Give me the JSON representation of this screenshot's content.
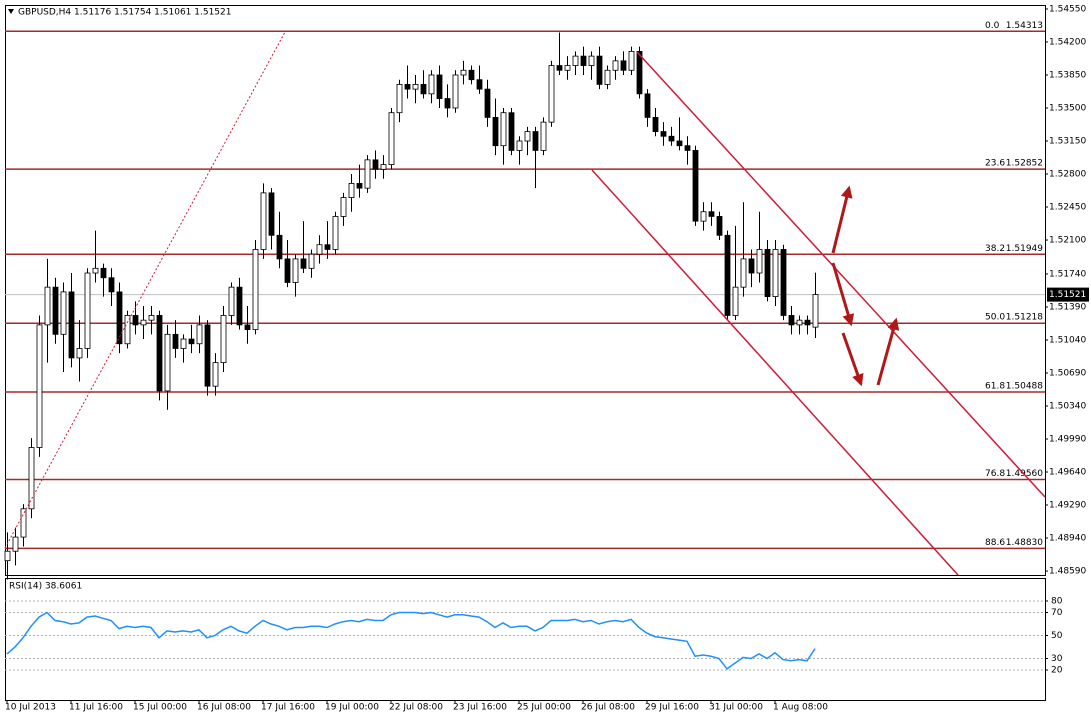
{
  "chart_data": [
    {
      "type": "candlestick",
      "title": "GBPUSD,H4  1.51176 1.51754 1.51061 1.51521",
      "categories": [
        "10 Jul 2013",
        null,
        null,
        null,
        null,
        null,
        null,
        null,
        "11 Jul 16:00",
        null,
        null,
        null,
        null,
        null,
        null,
        null,
        "15 Jul 00:00",
        null,
        null,
        null,
        null,
        null,
        null,
        null,
        "16 Jul 08:00",
        null,
        null,
        null,
        null,
        null,
        null,
        null,
        "17 Jul 16:00",
        null,
        null,
        null,
        null,
        null,
        null,
        null,
        "19 Jul 00:00",
        null,
        null,
        null,
        null,
        null,
        null,
        null,
        "22 Jul 08:00",
        null,
        null,
        null,
        null,
        null,
        null,
        null,
        "23 Jul 16:00",
        null,
        null,
        null,
        null,
        null,
        null,
        null,
        "25 Jul 00:00",
        null,
        null,
        null,
        null,
        null,
        null,
        null,
        "26 Jul 08:00",
        null,
        null,
        null,
        null,
        null,
        null,
        null,
        "29 Jul 16:00",
        null,
        null,
        null,
        null,
        null,
        null,
        null,
        "31 Jul 00:00",
        null,
        null,
        null,
        null,
        null,
        null,
        null,
        "1 Aug 08:00",
        null,
        null,
        null,
        null,
        null
      ],
      "open": [
        1.487,
        1.488,
        1.4895,
        1.4925,
        1.499,
        1.512,
        1.516,
        1.511,
        1.5155,
        1.5085,
        1.5095,
        1.5175,
        1.518,
        1.517,
        1.5155,
        1.51,
        1.513,
        1.512,
        1.5125,
        1.513,
        1.505,
        1.511,
        1.5095,
        1.5105,
        1.51,
        1.512,
        1.5055,
        1.508,
        1.513,
        1.516,
        1.512,
        1.5115,
        1.52,
        1.526,
        1.5215,
        1.519,
        1.5165,
        1.519,
        1.518,
        1.5195,
        1.5205,
        1.52,
        1.5235,
        1.5255,
        1.527,
        1.5265,
        1.5295,
        1.5285,
        1.529,
        1.5345,
        1.5375,
        1.537,
        1.5375,
        1.5365,
        1.5385,
        1.536,
        1.535,
        1.5385,
        1.539,
        1.538,
        1.537,
        1.534,
        1.531,
        1.5345,
        1.5305,
        1.5315,
        1.5325,
        1.5305,
        1.5335,
        1.5395,
        1.539,
        1.5395,
        1.5405,
        1.5395,
        1.5405,
        1.5375,
        1.539,
        1.54,
        1.539,
        1.541,
        1.5365,
        1.534,
        1.5325,
        1.532,
        1.5315,
        1.531,
        1.5305,
        1.523,
        1.524,
        1.5235,
        1.5215,
        1.513,
        1.516,
        1.519,
        1.5175,
        1.52,
        1.515,
        1.52,
        1.513,
        1.512,
        1.5125,
        1.51176
      ],
      "high": [
        1.49,
        1.4905,
        1.493,
        1.5,
        1.513,
        1.519,
        1.517,
        1.5165,
        1.5175,
        1.5125,
        1.518,
        1.522,
        1.5185,
        1.518,
        1.5165,
        1.5135,
        1.5145,
        1.514,
        1.514,
        1.5135,
        1.512,
        1.5125,
        1.511,
        1.512,
        1.513,
        1.5125,
        1.509,
        1.514,
        1.5165,
        1.517,
        1.514,
        1.521,
        1.527,
        1.5265,
        1.524,
        1.521,
        1.5195,
        1.523,
        1.52,
        1.5215,
        1.523,
        1.524,
        1.526,
        1.528,
        1.529,
        1.53,
        1.5305,
        1.53,
        1.535,
        1.538,
        1.5395,
        1.5385,
        1.539,
        1.539,
        1.5395,
        1.5375,
        1.539,
        1.54,
        1.5395,
        1.5395,
        1.538,
        1.536,
        1.535,
        1.535,
        1.532,
        1.533,
        1.533,
        1.534,
        1.54,
        1.543,
        1.5405,
        1.541,
        1.5415,
        1.541,
        1.5415,
        1.5395,
        1.5405,
        1.541,
        1.5415,
        1.5415,
        1.537,
        1.535,
        1.5335,
        1.533,
        1.534,
        1.532,
        1.531,
        1.525,
        1.525,
        1.524,
        1.522,
        1.5225,
        1.525,
        1.52,
        1.524,
        1.521,
        1.521,
        1.5205,
        1.514,
        1.513,
        1.513,
        1.51754
      ],
      "low": [
        1.485,
        1.4865,
        1.4885,
        1.4915,
        1.498,
        1.508,
        1.51,
        1.507,
        1.5075,
        1.506,
        1.5085,
        1.5165,
        1.515,
        1.514,
        1.509,
        1.5095,
        1.511,
        1.5105,
        1.511,
        1.504,
        1.503,
        1.5085,
        1.508,
        1.509,
        1.509,
        1.5045,
        1.5045,
        1.507,
        1.512,
        1.5115,
        1.51,
        1.511,
        1.519,
        1.52,
        1.518,
        1.516,
        1.515,
        1.5175,
        1.517,
        1.5185,
        1.519,
        1.5195,
        1.5225,
        1.524,
        1.5255,
        1.526,
        1.5275,
        1.5275,
        1.5285,
        1.5335,
        1.536,
        1.5355,
        1.536,
        1.5355,
        1.535,
        1.534,
        1.5345,
        1.5375,
        1.5375,
        1.5365,
        1.533,
        1.53,
        1.529,
        1.53,
        1.529,
        1.53,
        1.5265,
        1.53,
        1.533,
        1.5385,
        1.538,
        1.5385,
        1.5385,
        1.538,
        1.537,
        1.537,
        1.538,
        1.5385,
        1.5385,
        1.536,
        1.533,
        1.532,
        1.531,
        1.531,
        1.5305,
        1.529,
        1.5225,
        1.522,
        1.5225,
        1.521,
        1.5125,
        1.5125,
        1.515,
        1.516,
        1.5165,
        1.5145,
        1.514,
        1.5125,
        1.511,
        1.511,
        1.511,
        1.51061
      ],
      "close": [
        1.488,
        1.4895,
        1.4925,
        1.499,
        1.512,
        1.516,
        1.511,
        1.5155,
        1.5085,
        1.5095,
        1.5175,
        1.518,
        1.517,
        1.5155,
        1.51,
        1.513,
        1.512,
        1.5125,
        1.513,
        1.505,
        1.511,
        1.5095,
        1.5105,
        1.51,
        1.512,
        1.5055,
        1.508,
        1.513,
        1.516,
        1.512,
        1.5115,
        1.52,
        1.526,
        1.5215,
        1.519,
        1.5165,
        1.519,
        1.518,
        1.5195,
        1.5205,
        1.52,
        1.5235,
        1.5255,
        1.527,
        1.5265,
        1.5295,
        1.5285,
        1.529,
        1.5345,
        1.5375,
        1.537,
        1.5375,
        1.5365,
        1.5385,
        1.536,
        1.535,
        1.5385,
        1.539,
        1.538,
        1.537,
        1.534,
        1.531,
        1.5345,
        1.5305,
        1.5315,
        1.5325,
        1.5305,
        1.5335,
        1.5395,
        1.539,
        1.5395,
        1.5405,
        1.5395,
        1.5405,
        1.5375,
        1.539,
        1.54,
        1.539,
        1.541,
        1.5365,
        1.534,
        1.5325,
        1.532,
        1.5315,
        1.531,
        1.5305,
        1.523,
        1.524,
        1.5235,
        1.5215,
        1.513,
        1.516,
        1.519,
        1.5175,
        1.52,
        1.515,
        1.52,
        1.513,
        1.512,
        1.5125,
        1.512,
        1.51521
      ],
      "up_color": "#ffffff",
      "down_color": "#000000",
      "fib_color": "#a52a2a",
      "ylim": [
        1.48548,
        1.54592
      ],
      "yticks": [
        {
          "value": 1.5455,
          "label": "1.54550"
        },
        {
          "value": 1.542,
          "label": "1.54200"
        },
        {
          "value": 1.5385,
          "label": "1.53850"
        },
        {
          "value": 1.535,
          "label": "1.53500"
        },
        {
          "value": 1.5315,
          "label": "1.53150"
        },
        {
          "value": 1.528,
          "label": "1.52800"
        },
        {
          "value": 1.5245,
          "label": "1.52450"
        },
        {
          "value": 1.521,
          "label": "1.52100"
        },
        {
          "value": 1.5174,
          "label": "1.51740"
        },
        {
          "value": 1.5139,
          "label": "1.51390"
        },
        {
          "value": 1.5104,
          "label": "1.51040"
        },
        {
          "value": 1.5069,
          "label": "1.50690"
        },
        {
          "value": 1.5034,
          "label": "1.50340"
        },
        {
          "value": 1.4999,
          "label": "1.49990"
        },
        {
          "value": 1.4964,
          "label": "1.49640"
        },
        {
          "value": 1.4929,
          "label": "1.49290"
        },
        {
          "value": 1.4894,
          "label": "1.48940"
        },
        {
          "value": 1.4859,
          "label": "1.48590"
        }
      ],
      "fib_levels": [
        {
          "ratio": "0.0",
          "price": 1.54313
        },
        {
          "ratio": "23.6",
          "price": 1.52852
        },
        {
          "ratio": "38.2",
          "price": 1.51949
        },
        {
          "ratio": "50.0",
          "price": 1.51218
        },
        {
          "ratio": "61.8",
          "price": 1.50488
        },
        {
          "ratio": "76.8",
          "price": {
            "value": 1.4956,
            "label": "1.49560"
          }
        },
        {
          "ratio": "88.6",
          "price": {
            "value": 1.4883,
            "label": "1.48830"
          }
        }
      ],
      "last_price": 1.51521
    },
    {
      "type": "line",
      "title": "RSI(14) 38.6061",
      "color": "#1e90ff",
      "values": [
        34,
        40,
        48,
        58,
        66,
        70,
        63,
        62,
        60,
        61,
        66,
        67,
        65,
        63,
        56,
        58,
        57,
        58,
        57,
        48,
        54,
        53,
        54,
        53,
        55,
        48,
        50,
        55,
        58,
        54,
        52,
        58,
        63,
        60,
        58,
        55,
        57,
        57,
        58,
        58,
        57,
        60,
        62,
        63,
        62,
        64,
        63,
        63,
        68,
        70,
        70,
        70,
        69,
        70,
        68,
        66,
        68,
        68,
        67,
        66,
        62,
        57,
        61,
        57,
        58,
        58,
        54,
        57,
        63,
        63,
        63,
        64,
        62,
        63,
        60,
        62,
        63,
        62,
        64,
        57,
        52,
        49,
        48,
        47,
        46,
        45,
        32,
        33,
        32,
        30,
        21,
        26,
        31,
        30,
        34,
        30,
        35,
        29,
        28,
        29,
        28,
        38.6061
      ],
      "ylim": [
        0,
        100
      ],
      "yticks": [
        20,
        30,
        50,
        70,
        80
      ],
      "grid": true
    }
  ]
}
